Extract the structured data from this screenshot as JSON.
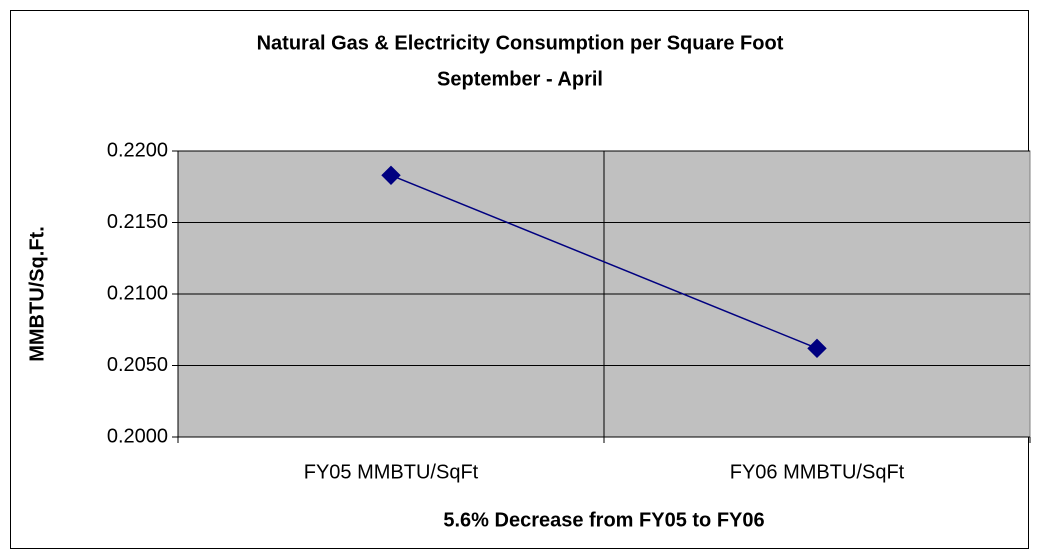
{
  "chart_data": {
    "type": "line",
    "title": "Natural Gas & Electricity Consumption per Square Foot",
    "subtitle": "September - April",
    "y_label": "MMBTU/Sq.Ft.",
    "x_label": "5.6% Decrease from FY05 to FY06",
    "categories": [
      "FY05 MMBTU/SqFt",
      "FY06 MMBTU/SqFt"
    ],
    "series": [
      {
        "name": "MMBTU/SqFt",
        "color": "#000080",
        "values": [
          0.2183,
          0.2062
        ]
      }
    ],
    "ylim": [
      0.2,
      0.22
    ],
    "yticks": [
      {
        "value": 0.2,
        "label": "0.2000"
      },
      {
        "value": 0.205,
        "label": "0.2050"
      },
      {
        "value": 0.21,
        "label": "0.2100"
      },
      {
        "value": 0.215,
        "label": "0.2150"
      },
      {
        "value": 0.22,
        "label": "0.2200"
      }
    ],
    "grid": true,
    "plot_background": "#c0c0c0"
  }
}
